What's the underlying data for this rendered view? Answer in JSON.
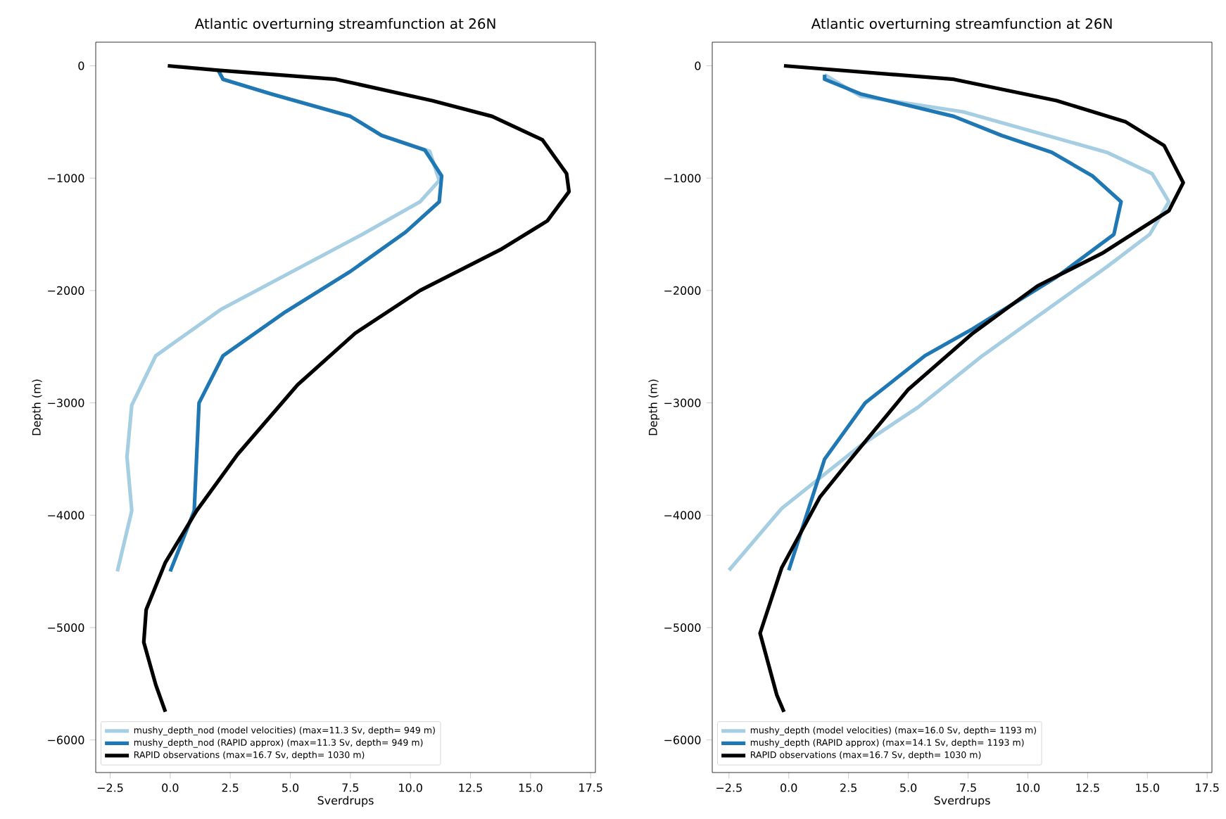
{
  "chart_data": [
    {
      "type": "line",
      "title": "Atlantic overturning streamfunction at 26N",
      "xlabel": "Sverdrups",
      "ylabel": "Depth (m)",
      "xlim": [
        -3.1,
        17.7
      ],
      "ylim": [
        -6290,
        210
      ],
      "xticks": [
        {
          "value": -2.5,
          "label": "−2.5"
        },
        {
          "value": 0,
          "label": "0.0"
        },
        {
          "value": 2.5,
          "label": "2.5"
        },
        {
          "value": 5,
          "label": "5.0"
        },
        {
          "value": 7.5,
          "label": "7.5"
        },
        {
          "value": 10,
          "label": "10.0"
        },
        {
          "value": 12.5,
          "label": "12.5"
        },
        {
          "value": 15,
          "label": "15.0"
        },
        {
          "value": 17.5,
          "label": "17.5"
        }
      ],
      "yticks": [
        {
          "value": -6000,
          "label": "−6000"
        },
        {
          "value": -5000,
          "label": "−5000"
        },
        {
          "value": -4000,
          "label": "−4000"
        },
        {
          "value": -3000,
          "label": "−3000"
        },
        {
          "value": -2000,
          "label": "−2000"
        },
        {
          "value": -1000,
          "label": "−1000"
        },
        0
      ],
      "grid": false,
      "legend": "bottom left",
      "marker": "none",
      "line_style": "solid",
      "series": [
        {
          "name": "mushy_depth_nod (model velocities) (max=11.3 Sv, depth=   949 m)",
          "color": "#a6cee3",
          "x": [
            2.0,
            2.2,
            4.2,
            7.5,
            8.8,
            10.8,
            11.2,
            10.4,
            8.0,
            2.1,
            -0.6,
            -1.6,
            -1.8,
            -1.6,
            -2.2
          ],
          "values": [
            -40,
            -120,
            -250,
            -450,
            -620,
            -760,
            -1020,
            -1210,
            -1500,
            -2170,
            -2580,
            -3020,
            -3480,
            -3960,
            -4500
          ]
        },
        {
          "name": "mushy_depth_nod (RAPID approx) (max=11.3 Sv, depth=   949 m)",
          "color": "#1f78b4",
          "x": [
            2.0,
            2.2,
            4.2,
            7.5,
            8.8,
            10.6,
            11.3,
            11.2,
            9.8,
            7.5,
            4.8,
            2.2,
            1.2,
            1.0,
            0.0
          ],
          "values": [
            -40,
            -120,
            -250,
            -450,
            -620,
            -750,
            -980,
            -1210,
            -1480,
            -1830,
            -2190,
            -2580,
            -3000,
            -3960,
            -4500
          ]
        },
        {
          "name": "RAPID observations (max=16.7 Sv, depth=  1030 m)",
          "color": "#000000",
          "x": [
            -0.1,
            2.0,
            6.9,
            10.9,
            13.4,
            15.5,
            16.5,
            16.6,
            15.7,
            13.8,
            10.4,
            7.7,
            5.3,
            2.8,
            1.1,
            -0.2,
            -1.0,
            -1.1,
            -0.6,
            -0.2
          ],
          "values": [
            0,
            -40,
            -120,
            -310,
            -450,
            -660,
            -960,
            -1120,
            -1380,
            -1630,
            -2000,
            -2380,
            -2840,
            -3460,
            -3960,
            -4420,
            -4840,
            -5130,
            -5510,
            -5750
          ]
        }
      ]
    },
    {
      "type": "line",
      "title": "Atlantic overturning streamfunction at 26N",
      "xlabel": "Sverdrups",
      "ylabel": "Depth (m)",
      "xlim": [
        -3.2,
        17.7
      ],
      "ylim": [
        -6290,
        210
      ],
      "xticks": [
        {
          "value": -2.5,
          "label": "−2.5"
        },
        {
          "value": 0,
          "label": "0.0"
        },
        {
          "value": 2.5,
          "label": "2.5"
        },
        {
          "value": 5,
          "label": "5.0"
        },
        {
          "value": 7.5,
          "label": "7.5"
        },
        {
          "value": 10,
          "label": "10.0"
        },
        {
          "value": 12.5,
          "label": "12.5"
        },
        {
          "value": 15,
          "label": "15.0"
        },
        {
          "value": 17.5,
          "label": "17.5"
        }
      ],
      "yticks": [
        {
          "value": -6000,
          "label": "−6000"
        },
        {
          "value": -5000,
          "label": "−5000"
        },
        {
          "value": -4000,
          "label": "−4000"
        },
        {
          "value": -3000,
          "label": "−3000"
        },
        {
          "value": -2000,
          "label": "−2000"
        },
        {
          "value": -1000,
          "label": "−1000"
        },
        0
      ],
      "grid": false,
      "legend": "bottom left",
      "marker": "none",
      "line_style": "solid",
      "series": [
        {
          "name": "mushy_depth (model velocities) (max=16.0 Sv, depth=  1193 m)",
          "color": "#a6cee3",
          "x": [
            1.5,
            3.0,
            7.3,
            13.3,
            15.2,
            15.9,
            15.1,
            13.3,
            8.1,
            5.4,
            3.0,
            -0.3,
            -2.5
          ],
          "values": [
            -80,
            -270,
            -410,
            -770,
            -960,
            -1210,
            -1500,
            -1790,
            -2580,
            -3040,
            -3380,
            -3940,
            -4490
          ]
        },
        {
          "name": "mushy_depth (RAPID approx) (max=14.1 Sv, depth=  1193 m)",
          "color": "#1f78b4",
          "x": [
            1.5,
            1.5,
            3.0,
            6.9,
            8.9,
            11.0,
            12.7,
            13.9,
            13.6,
            11.2,
            7.7,
            5.7,
            3.2,
            1.5,
            0.0
          ],
          "values": [
            -80,
            -120,
            -250,
            -450,
            -620,
            -770,
            -980,
            -1210,
            -1500,
            -1880,
            -2340,
            -2580,
            -3000,
            -3500,
            -4490
          ]
        },
        {
          "name": "RAPID observations (max=16.7 Sv, depth=  1030 m)",
          "color": "#000000",
          "x": [
            -0.2,
            6.9,
            11.2,
            14.1,
            15.7,
            16.5,
            15.9,
            13.1,
            10.4,
            7.7,
            5.0,
            2.4,
            1.3,
            -0.3,
            -1.2,
            -0.5,
            -0.2
          ],
          "values": [
            0,
            -120,
            -310,
            -500,
            -710,
            -1040,
            -1290,
            -1670,
            -1960,
            -2380,
            -2880,
            -3550,
            -3840,
            -4470,
            -5050,
            -5600,
            -5750
          ]
        }
      ]
    }
  ]
}
